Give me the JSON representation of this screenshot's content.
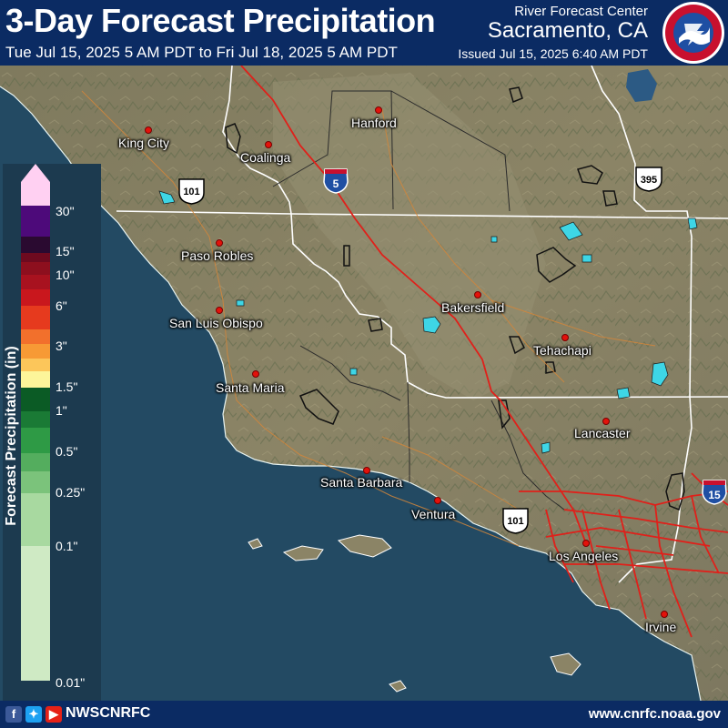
{
  "header": {
    "title": "3-Day Forecast Precipitation",
    "subtitle": "Tue Jul 15, 2025 5 AM PDT to Fri Jul 18, 2025 5 AM PDT",
    "center_label": "River Forecast Center",
    "center_city": "Sacramento, CA",
    "issued": "Issued Jul 15, 2025 6:40 AM PDT",
    "logo_text": "NATIONAL WEATHER SERVICE"
  },
  "legend": {
    "title": "Forecast Precipitation (in)",
    "labels": [
      "30\"",
      "15\"",
      "10\"",
      "6\"",
      "3\"",
      "1.5\"",
      "1\"",
      "0.5\"",
      "0.25\"",
      "0.1\"",
      "0.01\""
    ],
    "colors": {
      "over30": "#ffd0f2",
      "p30": "#4d0a7a",
      "p20": "#2a0a30",
      "p15": "#6e0a1f",
      "p12": "#8d0f1e",
      "p10": "#a8121f",
      "p8": "#c9171d",
      "p6": "#e63a1e",
      "p4": "#f2702c",
      "p3": "#f79a35",
      "p2": "#fcc65a",
      "p1_5": "#fdf59a",
      "p1_25": "#0b5b25",
      "p1": "#1a7a35",
      "p0_75": "#2e9a45",
      "p0_5": "#54ad5e",
      "p0_25": "#7bc37b",
      "p0_1": "#a8d9a0",
      "p0_01": "#cfeac4"
    }
  },
  "cities": [
    "King City",
    "Coalinga",
    "Hanford",
    "Paso Robles",
    "San Luis Obispo",
    "Bakersfield",
    "Tehachapi",
    "Santa Maria",
    "Lancaster",
    "Santa Barbara",
    "Ventura",
    "Los Angeles",
    "Irvine"
  ],
  "highways": [
    "101",
    "5",
    "395",
    "101",
    "15"
  ],
  "footer": {
    "handle": "NWSCNRFC",
    "website": "www.cnrfc.noaa.gov",
    "icons": [
      "facebook-icon",
      "twitter-icon",
      "youtube-icon"
    ]
  }
}
